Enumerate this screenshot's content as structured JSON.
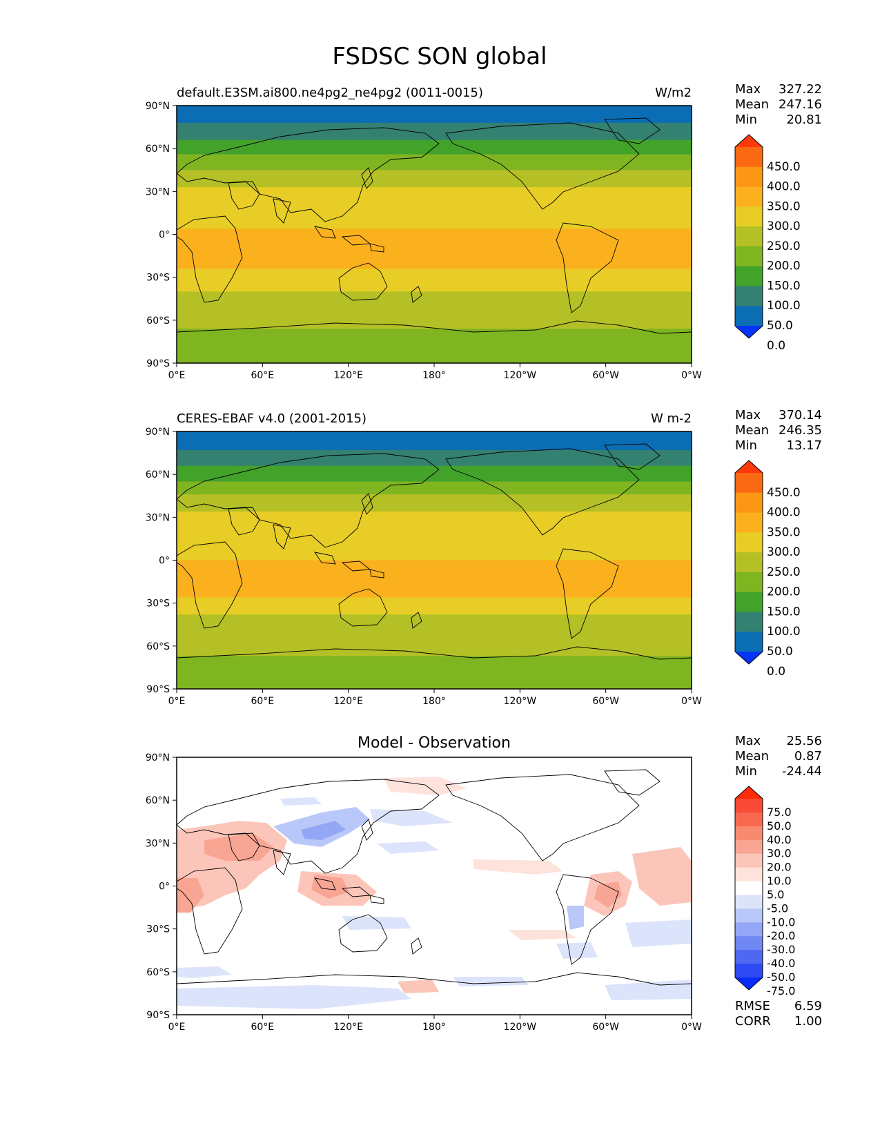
{
  "title": "FSDSC SON global",
  "lat_ticks": [
    "90°N",
    "60°N",
    "30°N",
    "0°",
    "30°S",
    "60°S",
    "90°S"
  ],
  "lon_ticks": [
    "0°E",
    "60°E",
    "120°E",
    "180°",
    "120°W",
    "60°W",
    "0°W"
  ],
  "panels": [
    {
      "id": "model",
      "left_title": "default.E3SM.ai800.ne4pg2_ne4pg2 (0011-0015)",
      "center_title": "",
      "units": "W/m2",
      "stats": [
        {
          "label": "Max",
          "value": "327.22"
        },
        {
          "label": "Mean",
          "value": "247.16"
        },
        {
          "label": "Min",
          "value": "20.81"
        }
      ],
      "colorbar_labels": [
        "450.0",
        "400.0",
        "350.0",
        "300.0",
        "250.0",
        "200.0",
        "150.0",
        "100.0",
        "50.0",
        "0.0"
      ],
      "colorbar_colors": [
        "#ff3a0a",
        "#fb6a12",
        "#fb9714",
        "#fbb11e",
        "#e7cd25",
        "#b4c025",
        "#7fb521",
        "#43a22a",
        "#348071",
        "#0b6db4",
        "#0634fb"
      ]
    },
    {
      "id": "obs",
      "left_title": "CERES-EBAF v4.0 (2001-2015)",
      "center_title": "",
      "units": "W m-2",
      "stats": [
        {
          "label": "Max",
          "value": "370.14"
        },
        {
          "label": "Mean",
          "value": "246.35"
        },
        {
          "label": "Min",
          "value": "13.17"
        }
      ],
      "colorbar_labels": [
        "450.0",
        "400.0",
        "350.0",
        "300.0",
        "250.0",
        "200.0",
        "150.0",
        "100.0",
        "50.0",
        "0.0"
      ],
      "colorbar_colors": [
        "#ff3a0a",
        "#fb6a12",
        "#fb9714",
        "#fbb11e",
        "#e7cd25",
        "#b4c025",
        "#7fb521",
        "#43a22a",
        "#348071",
        "#0b6db4",
        "#0634fb"
      ]
    },
    {
      "id": "diff",
      "left_title": "",
      "center_title": "Model - Observation",
      "units": "",
      "stats": [
        {
          "label": "Max",
          "value": "25.56"
        },
        {
          "label": "Mean",
          "value": "0.87"
        },
        {
          "label": "Min",
          "value": "-24.44"
        }
      ],
      "colorbar_labels": [
        "75.0",
        "50.0",
        "40.0",
        "30.0",
        "20.0",
        "10.0",
        "5.0",
        "-5.0",
        "-10.0",
        "-20.0",
        "-30.0",
        "-40.0",
        "-50.0",
        "-75.0"
      ],
      "colorbar_colors": [
        "#ff2c0a",
        "#f94a35",
        "#f8684f",
        "#f98a70",
        "#f9a593",
        "#fbc6b9",
        "#fde3dc",
        "#ffffff",
        "#dce4fb",
        "#b9c8f8",
        "#93a7f6",
        "#7088f4",
        "#4f68f2",
        "#2c49f4",
        "#0a2cf8"
      ],
      "metrics": [
        {
          "label": "RMSE",
          "value": "6.59"
        },
        {
          "label": "CORR",
          "value": "1.00"
        }
      ]
    }
  ],
  "map_fields": {
    "model": [
      {
        "lat_north": 90,
        "lat_south": 78,
        "color": "#0b6db4"
      },
      {
        "lat_north": 78,
        "lat_south": 66,
        "color": "#348071"
      },
      {
        "lat_north": 66,
        "lat_south": 56,
        "color": "#43a22a"
      },
      {
        "lat_north": 56,
        "lat_south": 45,
        "color": "#7fb521"
      },
      {
        "lat_north": 45,
        "lat_south": 33,
        "color": "#b4c025"
      },
      {
        "lat_north": 33,
        "lat_south": 4,
        "color": "#e7cd25"
      },
      {
        "lat_north": 4,
        "lat_south": -24,
        "color": "#fbb11e"
      },
      {
        "lat_north": -24,
        "lat_south": -40,
        "color": "#e7cd25"
      },
      {
        "lat_north": -40,
        "lat_south": -66,
        "color": "#b4c025"
      },
      {
        "lat_north": -66,
        "lat_south": -90,
        "color": "#7fb521"
      }
    ],
    "obs": [
      {
        "lat_north": 90,
        "lat_south": 77,
        "color": "#0b6db4"
      },
      {
        "lat_north": 77,
        "lat_south": 66,
        "color": "#348071"
      },
      {
        "lat_north": 66,
        "lat_south": 55,
        "color": "#43a22a"
      },
      {
        "lat_north": 55,
        "lat_south": 46,
        "color": "#7fb521"
      },
      {
        "lat_north": 46,
        "lat_south": 34,
        "color": "#b4c025"
      },
      {
        "lat_north": 34,
        "lat_south": 0,
        "color": "#e7cd25"
      },
      {
        "lat_north": 0,
        "lat_south": -26,
        "color": "#fbb11e"
      },
      {
        "lat_north": -26,
        "lat_south": -38,
        "color": "#e7cd25"
      },
      {
        "lat_north": -38,
        "lat_south": -67,
        "color": "#b4c025"
      },
      {
        "lat_north": -67,
        "lat_south": -90,
        "color": "#7fb521"
      }
    ]
  }
}
